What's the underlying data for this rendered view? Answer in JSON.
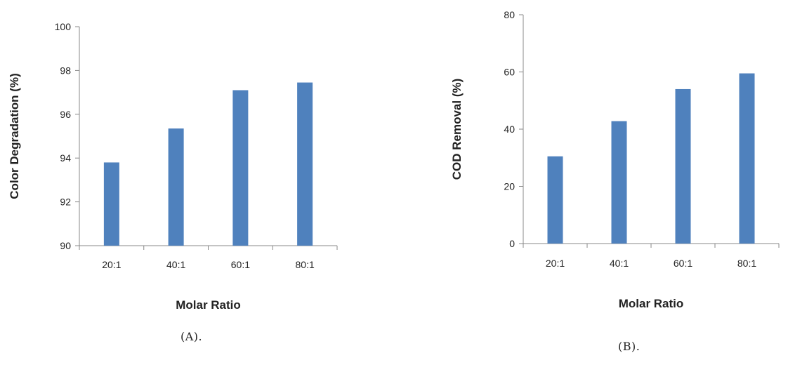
{
  "chart_data": [
    {
      "type": "bar",
      "categories": [
        "20:1",
        "40:1",
        "60:1",
        "80:1"
      ],
      "values": [
        93.8,
        95.35,
        97.1,
        97.45
      ],
      "xlabel": "Molar Ratio",
      "ylabel": "Color Degradation (%)",
      "ylim": [
        90,
        100
      ],
      "yticks": [
        "90",
        "92",
        "94",
        "96",
        "98",
        "100"
      ],
      "color": "#4F81BD",
      "grid": false,
      "caption": "(A)."
    },
    {
      "type": "bar",
      "categories": [
        "20:1",
        "40:1",
        "60:1",
        "80:1"
      ],
      "values": [
        30.5,
        42.8,
        54,
        59.5
      ],
      "xlabel": "Molar Ratio",
      "ylabel": "COD Removal (%)",
      "ylim": [
        0,
        80
      ],
      "yticks": [
        "0",
        "20",
        "40",
        "60",
        "80"
      ],
      "color": "#4F81BD",
      "grid": false,
      "caption": "(B)."
    }
  ]
}
